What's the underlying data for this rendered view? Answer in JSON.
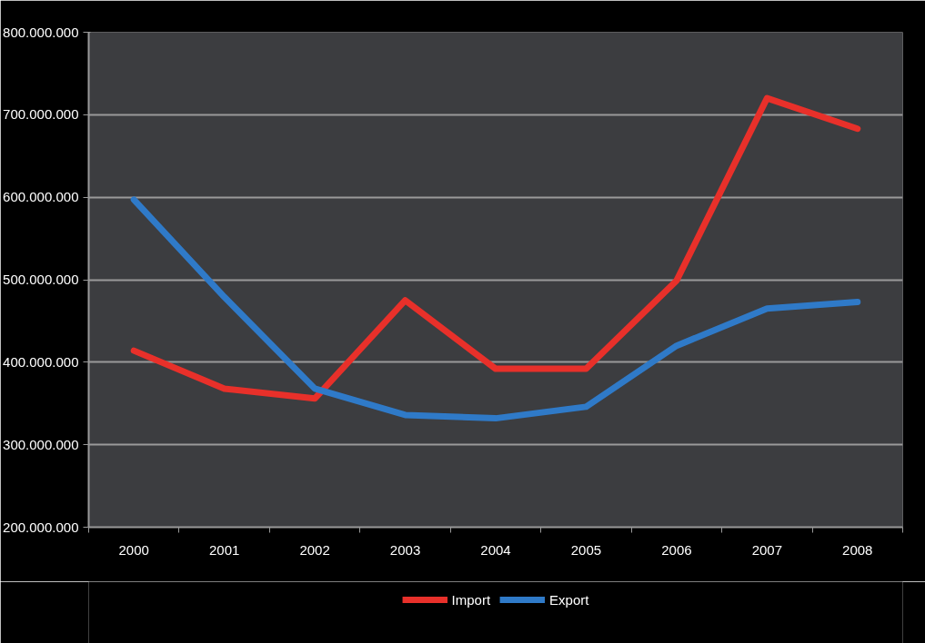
{
  "chart_data": {
    "type": "line",
    "categories": [
      "2000",
      "2001",
      "2002",
      "2003",
      "2004",
      "2005",
      "2006",
      "2007",
      "2008"
    ],
    "series": [
      {
        "name": "Import",
        "color": "#e8302a",
        "values": [
          414000000,
          368000000,
          356000000,
          475000000,
          392000000,
          392000000,
          499000000,
          720000000,
          683000000
        ]
      },
      {
        "name": "Export",
        "color": "#2f7ac8",
        "values": [
          597000000,
          479000000,
          368000000,
          336000000,
          332000000,
          346000000,
          420000000,
          465000000,
          473000000
        ]
      }
    ],
    "ylim": [
      200000000,
      800000000
    ],
    "yticks": [
      {
        "value": 200000000,
        "label": "200.000.000"
      },
      {
        "value": 300000000,
        "label": "300.000.000"
      },
      {
        "value": 400000000,
        "label": "400.000.000"
      },
      {
        "value": 500000000,
        "label": "500.000.000"
      },
      {
        "value": 600000000,
        "label": "600.000.000"
      },
      {
        "value": 700000000,
        "label": "700.000.000"
      },
      {
        "value": 800000000,
        "label": "800.000.000"
      }
    ],
    "grid": "y",
    "legend": "bottom",
    "marker": "none",
    "line_style": "solid"
  }
}
